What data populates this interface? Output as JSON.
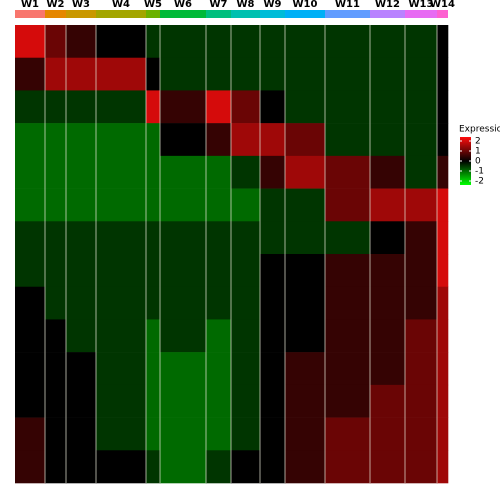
{
  "chart_data": {
    "type": "heatmap",
    "categories": [
      "W1",
      "W2",
      "W3",
      "W4",
      "W5",
      "W6",
      "W7",
      "W8",
      "W9",
      "W10",
      "W11",
      "W12",
      "W13",
      "W14"
    ],
    "category_colors": [
      "#f8766d",
      "#e58700",
      "#c99800",
      "#a3a500",
      "#6bb100",
      "#00ba38",
      "#00bf7d",
      "#00c0af",
      "#00bcd8",
      "#00b0f6",
      "#619cff",
      "#b983ff",
      "#e76bf3",
      "#fd61d1"
    ],
    "values": [
      [
        2,
        1,
        0.5,
        0,
        -0.5,
        -0.5,
        -0.5,
        -0.5,
        -0.5,
        -0.5,
        -0.5,
        -0.5,
        -0.5,
        0
      ],
      [
        0.5,
        1.5,
        1.5,
        1.5,
        0,
        -0.5,
        -0.5,
        -0.5,
        -0.5,
        -0.5,
        -0.5,
        -0.5,
        -0.5,
        0
      ],
      [
        -0.5,
        -0.5,
        -0.5,
        -0.5,
        2,
        0.5,
        2,
        1,
        0,
        -0.5,
        -0.5,
        -0.5,
        -0.5,
        0
      ],
      [
        -1,
        -1,
        -1,
        -1,
        -1,
        0,
        0.5,
        1.5,
        1.5,
        1,
        -0.5,
        -0.5,
        -0.5,
        0
      ],
      [
        -1,
        -1,
        -1,
        -1,
        -1,
        -1,
        -1,
        -0.5,
        0.5,
        1.5,
        1,
        0.5,
        -0.5,
        0.5
      ],
      [
        -1,
        -1,
        -1,
        -1,
        -1,
        -1,
        -1,
        -1,
        -0.5,
        -0.5,
        1,
        1.5,
        1.5,
        2
      ],
      [
        -0.5,
        -0.5,
        -0.5,
        -0.5,
        -0.5,
        -0.5,
        -0.5,
        -0.5,
        -0.5,
        -0.5,
        -0.5,
        0,
        0.5,
        2
      ],
      [
        -0.5,
        -0.5,
        -0.5,
        -0.5,
        -0.5,
        -0.5,
        -0.5,
        -0.5,
        0,
        0,
        0.5,
        0.5,
        0.5,
        2
      ],
      [
        0,
        -0.5,
        -0.5,
        -0.5,
        -0.5,
        -0.5,
        -0.5,
        -0.5,
        0,
        0,
        0.5,
        0.5,
        0.5,
        1.5
      ],
      [
        0,
        0,
        -0.5,
        -0.5,
        -1,
        -0.5,
        -1,
        -0.5,
        0,
        0,
        0.5,
        0.5,
        1,
        1.5
      ],
      [
        0,
        0,
        0,
        -0.5,
        -1,
        -1,
        -1,
        -0.5,
        0,
        0.5,
        0.5,
        0.5,
        1,
        1.5
      ],
      [
        0,
        0,
        0,
        -0.5,
        -1,
        -1,
        -1,
        -0.5,
        0,
        0.5,
        0.5,
        1,
        1,
        1.5
      ],
      [
        0.5,
        0,
        0,
        -0.5,
        -1,
        -1,
        -1,
        -0.5,
        0,
        0.5,
        1,
        1,
        1,
        1.5
      ],
      [
        0.5,
        0,
        0,
        0,
        -0.5,
        -1,
        -0.5,
        0,
        0,
        0.5,
        1,
        1,
        1,
        1.5
      ]
    ],
    "legend_title": "Expression",
    "clim": [
      -2.4,
      2.4
    ],
    "colorbar_ticks": [
      2,
      1,
      0,
      -1,
      -2
    ]
  }
}
